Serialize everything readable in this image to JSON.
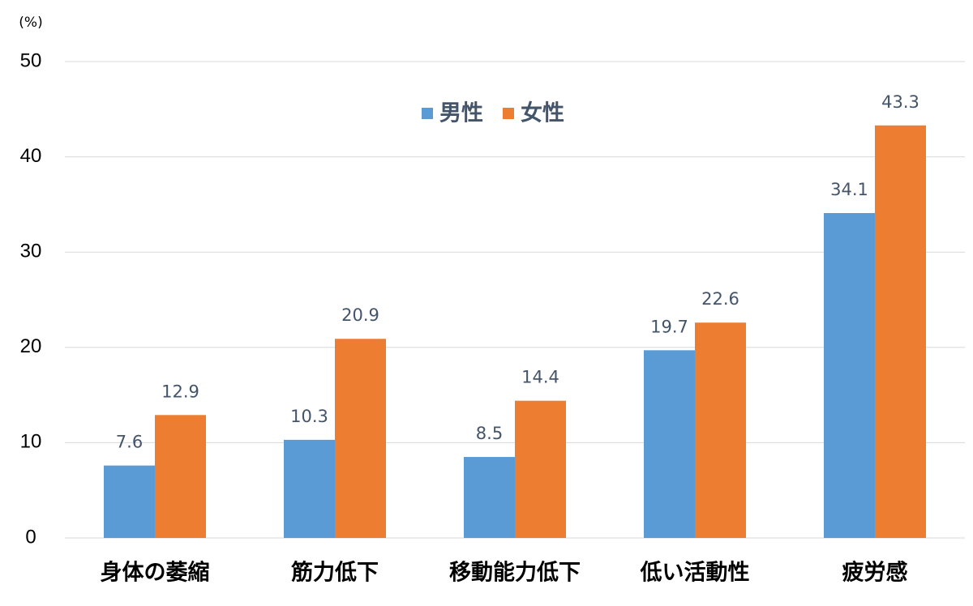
{
  "chart_data": {
    "type": "bar",
    "y_label": "(%)",
    "categories": [
      "身体の萎縮",
      "筋力低下",
      "移動能力低下",
      "低い活動性",
      "疲労感"
    ],
    "series": [
      {
        "name": "男性",
        "color": "#5b9bd5",
        "values": [
          7.6,
          10.3,
          8.5,
          19.7,
          34.1
        ]
      },
      {
        "name": "女性",
        "color": "#ed7d31",
        "values": [
          12.9,
          20.9,
          14.4,
          22.6,
          43.3
        ]
      }
    ],
    "ylim": [
      0,
      50
    ],
    "yticks": [
      0,
      10,
      20,
      30,
      40,
      50
    ],
    "grid": true,
    "legend": "top"
  }
}
